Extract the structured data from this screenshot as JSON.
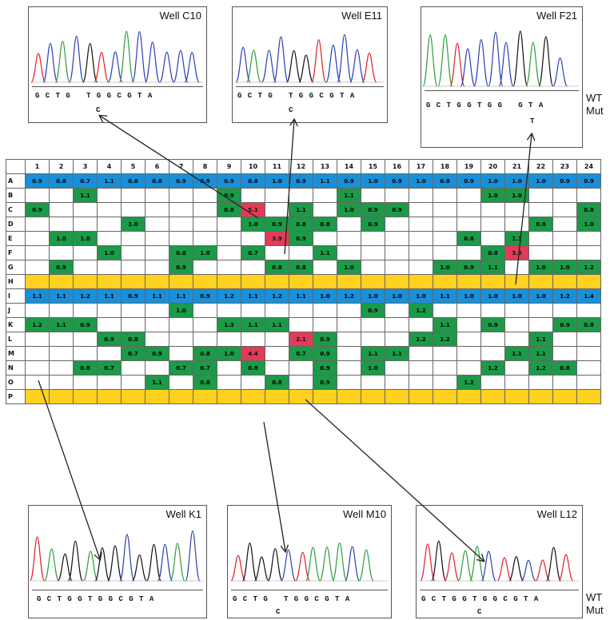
{
  "panels_top": [
    {
      "title": "Well C10",
      "seq": "G C T G   T G G C G T A",
      "mut": "C"
    },
    {
      "title": "Well E11",
      "seq": "G C T G   T G G C G T A",
      "mut": "C"
    },
    {
      "title": "Well F21",
      "seq": "G C T G G T G G   G T A",
      "mut": "T"
    }
  ],
  "panels_bottom": [
    {
      "title": "Well K1",
      "seq": "G C T G G T G G C G T A",
      "mut": ""
    },
    {
      "title": "Well M10",
      "seq": "G C T G   T G G C G T A",
      "mut": "C"
    },
    {
      "title": "Well L12",
      "seq": "G C T G G T G G C G T A",
      "mut": "C"
    }
  ],
  "side_labels": {
    "wt": "WT",
    "mut": "Mut"
  },
  "plate": {
    "columns": [
      "1",
      "2",
      "3",
      "4",
      "5",
      "6",
      "7",
      "8",
      "9",
      "10",
      "11",
      "12",
      "13",
      "14",
      "15",
      "16",
      "17",
      "18",
      "19",
      "20",
      "21",
      "22",
      "23",
      "24"
    ],
    "rows": [
      {
        "label": "A",
        "fill": "blue",
        "cells": [
          "0.9",
          "0.8",
          "0.7",
          "1.1",
          "0.8",
          "0.8",
          "0.9",
          "0.9",
          "0.9",
          "0.8",
          "1.0",
          "0.9",
          "1.1",
          "0.9",
          "1.0",
          "0.9",
          "1.0",
          "0.8",
          "0.9",
          "1.0",
          "1.0",
          "1.0",
          "0.9",
          "0.9"
        ]
      },
      {
        "label": "B",
        "fill": "",
        "cells": [
          "",
          "",
          "1.1",
          "",
          "",
          "",
          "",
          "",
          "0.9",
          "",
          "",
          "",
          "",
          "1.1",
          "",
          "",
          "",
          "",
          "",
          "1.0",
          "1.0",
          "",
          "",
          ""
        ]
      },
      {
        "label": "C",
        "fill": "",
        "cells": [
          "0.9",
          "",
          "",
          "",
          "",
          "",
          "",
          "",
          "0.8",
          "5.1",
          "",
          "1.1",
          "",
          "1.0",
          "0.9",
          "0.9",
          "",
          "",
          "",
          "",
          "",
          "",
          "",
          "0.8"
        ]
      },
      {
        "label": "D",
        "fill": "",
        "cells": [
          "",
          "",
          "",
          "",
          "1.0",
          "",
          "",
          "",
          "",
          "1.0",
          "0.9",
          "0.8",
          "0.8",
          "",
          "0.9",
          "",
          "",
          "",
          "",
          "",
          "",
          "0.8",
          "",
          "1.0"
        ]
      },
      {
        "label": "E",
        "fill": "",
        "cells": [
          "",
          "1.0",
          "1.0",
          "",
          "",
          "",
          "",
          "",
          "",
          "",
          "3.9",
          "0.9",
          "",
          "",
          "",
          "",
          "",
          "",
          "0.8",
          "",
          "1.1",
          "",
          "",
          ""
        ]
      },
      {
        "label": "F",
        "fill": "",
        "cells": [
          "",
          "",
          "",
          "1.0",
          "",
          "",
          "0.8",
          "1.0",
          "",
          "0.7",
          "",
          "",
          "1.1",
          "",
          "",
          "",
          "",
          "",
          "",
          "0.8",
          "3.6",
          "",
          "",
          ""
        ]
      },
      {
        "label": "G",
        "fill": "",
        "cells": [
          "",
          "0.9",
          "",
          "",
          "",
          "",
          "0.9",
          "",
          "",
          "",
          "0.8",
          "0.8",
          "",
          "1.0",
          "",
          "",
          "",
          "1.0",
          "0.9",
          "1.1",
          "",
          "1.0",
          "1.0",
          "1.2"
        ]
      },
      {
        "label": "H",
        "fill": "yellow",
        "cells": [
          "",
          "",
          "",
          "",
          "",
          "",
          "",
          "",
          "",
          "",
          "",
          "",
          "",
          "",
          "",
          "",
          "",
          "",
          "",
          "",
          "",
          "",
          "",
          ""
        ]
      },
      {
        "label": "I",
        "fill": "blue",
        "cells": [
          "1.1",
          "1.1",
          "1.2",
          "1.1",
          "0.9",
          "1.1",
          "1.1",
          "0.9",
          "1.2",
          "1.1",
          "1.2",
          "1.1",
          "1.0",
          "1.2",
          "1.0",
          "1.0",
          "1.0",
          "1.1",
          "1.0",
          "1.0",
          "1.0",
          "1.0",
          "1.2",
          "1.4"
        ]
      },
      {
        "label": "J",
        "fill": "",
        "cells": [
          "",
          "",
          "",
          "",
          "",
          "",
          "1.0",
          "",
          "",
          "",
          "",
          "",
          "",
          "",
          "0.9",
          "",
          "1.2",
          "",
          "",
          "",
          "",
          "",
          "",
          ""
        ]
      },
      {
        "label": "K",
        "fill": "",
        "cells": [
          "1.2",
          "1.1",
          "0.9",
          "",
          "",
          "",
          "",
          "",
          "1.3",
          "1.1",
          "1.1",
          "",
          "",
          "",
          "",
          "",
          "",
          "1.1",
          "",
          "0.9",
          "",
          "",
          "0.9",
          "0.8"
        ]
      },
      {
        "label": "L",
        "fill": "",
        "cells": [
          "",
          "",
          "",
          "0.9",
          "0.8",
          "",
          "",
          "",
          "",
          "",
          "",
          "2.1",
          "0.9",
          "",
          "",
          "",
          "1.2",
          "1.2",
          "",
          "",
          "",
          "1.1",
          "",
          ""
        ]
      },
      {
        "label": "M",
        "fill": "",
        "cells": [
          "",
          "",
          "",
          "",
          "0.7",
          "0.9",
          "",
          "0.8",
          "1.0",
          "4.4",
          "",
          "0.7",
          "0.9",
          "",
          "1.1",
          "1.1",
          "",
          "",
          "",
          "",
          "1.1",
          "1.1",
          "",
          ""
        ]
      },
      {
        "label": "N",
        "fill": "",
        "cells": [
          "",
          "",
          "0.8",
          "0.7",
          "",
          "",
          "0.7",
          "0.7",
          "",
          "0.8",
          "",
          "",
          "0.9",
          "",
          "1.0",
          "",
          "",
          "",
          "",
          "1.2",
          "",
          "1.2",
          "0.8",
          ""
        ]
      },
      {
        "label": "O",
        "fill": "",
        "cells": [
          "",
          "",
          "",
          "",
          "",
          "1.1",
          "",
          "0.8",
          "",
          "",
          "0.8",
          "",
          "0.9",
          "",
          "",
          "",
          "",
          "",
          "1.2",
          "",
          "",
          "",
          "",
          ""
        ]
      },
      {
        "label": "P",
        "fill": "yellow",
        "cells": [
          "",
          "",
          "",
          "",
          "",
          "",
          "",
          "",
          "",
          "",
          "",
          "",
          "",
          "",
          "",
          "",
          "",
          "",
          "",
          "",
          "",
          "",
          "",
          ""
        ]
      }
    ],
    "red_cells": [
      "C10",
      "E11",
      "F21",
      "L12",
      "M10"
    ],
    "colors": {
      "blue": "#1a8fd8",
      "green": "#1c9a48",
      "red": "#e23b57",
      "yellow": "#ffd21f"
    }
  },
  "trace_colors": {
    "G": "#111111",
    "C": "#2a3fb8",
    "T": "#e0202a",
    "A": "#2f9d3f"
  }
}
